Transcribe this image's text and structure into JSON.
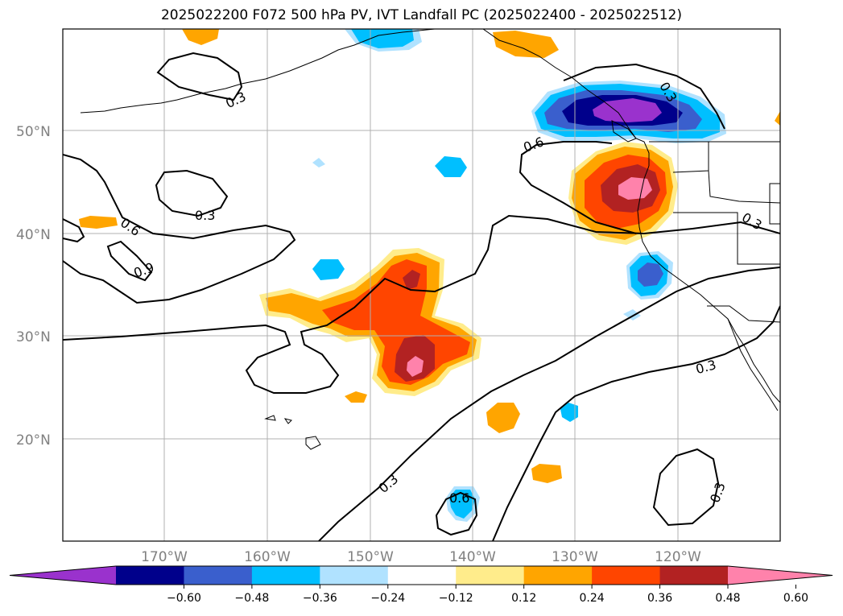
{
  "title": "2025022200 F072 500 hPa PV, IVT Landfall PC (2025022400 - 2025022512)",
  "lat_labels": [
    "50°N",
    "40°N",
    "30°N",
    "20°N"
  ],
  "lon_labels": [
    "170°W",
    "160°W",
    "150°W",
    "140°W",
    "130°W",
    "120°W"
  ],
  "colorbar": {
    "colors": [
      "#9a32cd",
      "#00008b",
      "#3a5fcd",
      "#00bfff",
      "#b0e2ff",
      "#ffffff",
      "#ffec8b",
      "#ffa500",
      "#ff4500",
      "#b22222",
      "#ff82ab"
    ],
    "tick_labels": [
      "−0.60",
      "−0.48",
      "−0.36",
      "−0.24",
      "−0.12",
      "0.12",
      "0.24",
      "0.36",
      "0.48",
      "0.60"
    ]
  },
  "contour_labels": [
    "0.3",
    "0.3",
    "0.6",
    "0.9",
    "0.6",
    "0.3",
    "0.3",
    "0.3",
    "0.3",
    "0.6",
    "0.3"
  ]
}
